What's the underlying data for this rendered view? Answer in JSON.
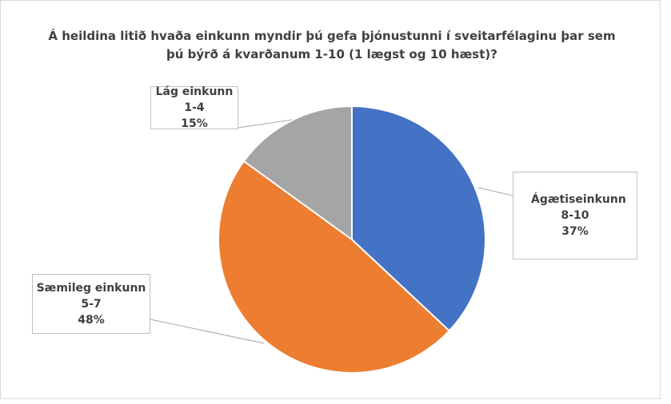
{
  "chart_data": {
    "type": "pie",
    "title": "Á heildina litið hvaða einkunn myndir þú gefa þjónustunni í sveitarfélaginu þar sem þú býrð á kvarðanum 1-10 (1 lægst og 10 hæst)?",
    "categories": [
      "Ágætiseinkunn 8-10",
      "Sæmileg einkunn 5-7",
      "Lág einkunn 1-4"
    ],
    "values": [
      37,
      48,
      15
    ],
    "value_labels": [
      "37%",
      "48%",
      "15%"
    ],
    "colors": [
      "#4472c4",
      "#ed7d31",
      "#a5a5a5"
    ]
  }
}
